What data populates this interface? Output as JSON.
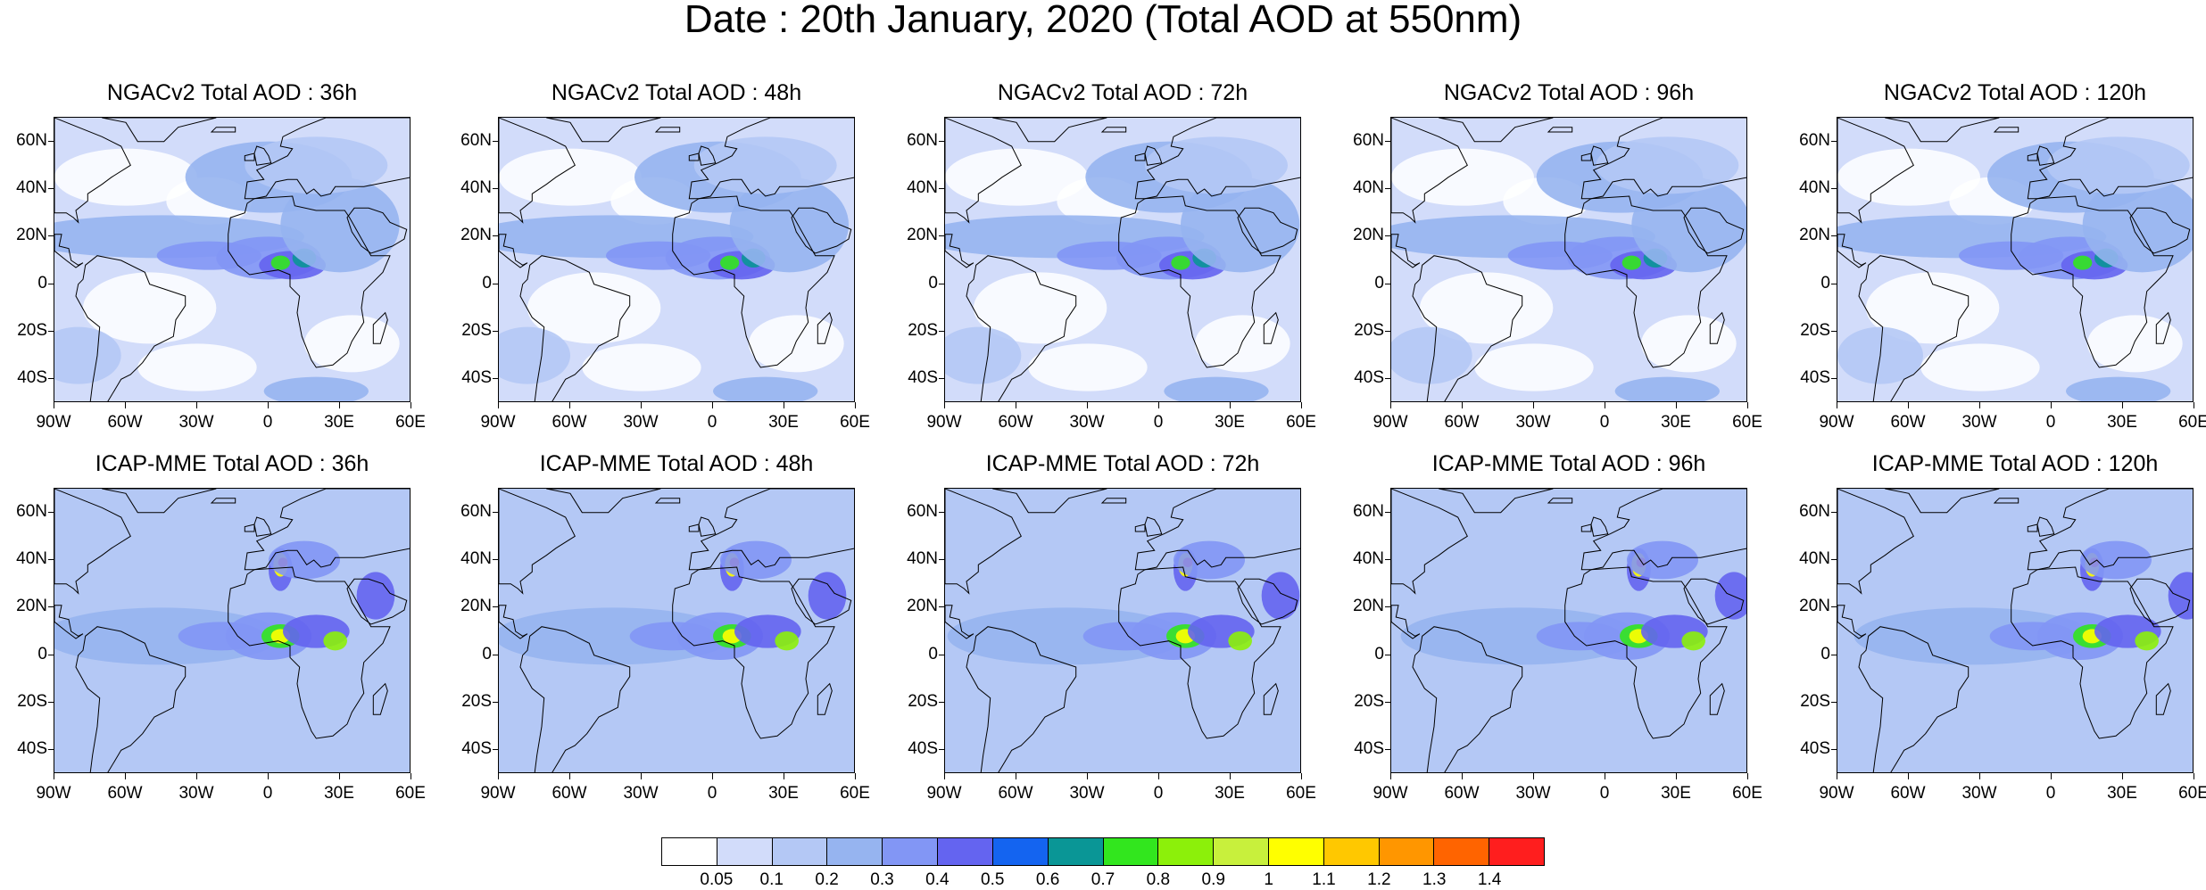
{
  "title": "Date : 20th January, 2020 (Total AOD at 550nm)",
  "panels": [
    {
      "label": "NGACv2 Total AOD : 36h",
      "model": "NGACv2",
      "lead": "36h"
    },
    {
      "label": "NGACv2 Total AOD : 48h",
      "model": "NGACv2",
      "lead": "48h"
    },
    {
      "label": "NGACv2 Total AOD : 72h",
      "model": "NGACv2",
      "lead": "72h"
    },
    {
      "label": "NGACv2 Total AOD : 96h",
      "model": "NGACv2",
      "lead": "96h"
    },
    {
      "label": "NGACv2 Total AOD : 120h",
      "model": "NGACv2",
      "lead": "120h"
    },
    {
      "label": "ICAP-MME Total AOD : 36h",
      "model": "ICAP-MME",
      "lead": "36h"
    },
    {
      "label": "ICAP-MME Total AOD : 48h",
      "model": "ICAP-MME",
      "lead": "48h"
    },
    {
      "label": "ICAP-MME Total AOD : 72h",
      "model": "ICAP-MME",
      "lead": "72h"
    },
    {
      "label": "ICAP-MME Total AOD : 96h",
      "model": "ICAP-MME",
      "lead": "96h"
    },
    {
      "label": "ICAP-MME Total AOD : 120h",
      "model": "ICAP-MME",
      "lead": "120h"
    }
  ],
  "map_extent": {
    "lon": [
      -90,
      60
    ],
    "lat": [
      -50,
      70
    ]
  },
  "lat_ticks": [
    "60N",
    "40N",
    "20N",
    "0",
    "20S",
    "40S"
  ],
  "lon_ticks": [
    "90W",
    "60W",
    "30W",
    "0",
    "30E",
    "60E"
  ],
  "colorbar": {
    "labels": [
      "0.05",
      "0.1",
      "0.2",
      "0.3",
      "0.4",
      "0.5",
      "0.6",
      "0.7",
      "0.8",
      "0.9",
      "1",
      "1.1",
      "1.2",
      "1.3",
      "1.4"
    ],
    "colors": [
      "#ffffff",
      "#d2dcfa",
      "#b4c8f5",
      "#96b4f0",
      "#8296f5",
      "#6464f0",
      "#1464f0",
      "#0a9696",
      "#32e61e",
      "#8cf00a",
      "#c8f03c",
      "#ffff00",
      "#ffc800",
      "#ff9600",
      "#ff6400",
      "#ff1e1e"
    ]
  }
}
